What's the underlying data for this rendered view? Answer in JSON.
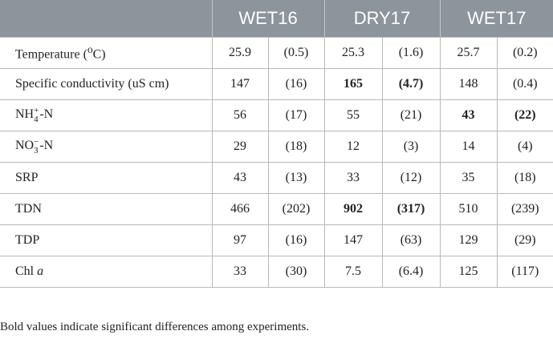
{
  "headers": [
    "",
    "WET16",
    "DRY17",
    "WET17"
  ],
  "rows": [
    {
      "label_parts": {
        "text": "Temperature (",
        "sup": "o",
        "tail": "C)"
      },
      "values": [
        "25.9",
        "(0.5)",
        "25.3",
        "(1.6)",
        "25.7",
        "(0.2)"
      ],
      "bold": [
        false,
        false,
        false,
        false,
        false,
        false
      ]
    },
    {
      "label": "Specific conductivity (uS cm)",
      "values": [
        "147",
        "(16)",
        "165",
        "(4.7)",
        "148",
        "(0.4)"
      ],
      "bold": [
        false,
        false,
        true,
        true,
        false,
        false
      ]
    },
    {
      "label_parts": {
        "base": "NH",
        "sup": "+",
        "sub": "4",
        "tail": "-N"
      },
      "values": [
        "56",
        "(17)",
        "55",
        "(21)",
        "43",
        "(22)"
      ],
      "bold": [
        false,
        false,
        false,
        false,
        true,
        true
      ]
    },
    {
      "label_parts": {
        "base": "NO",
        "sup": "−",
        "sub": "3",
        "tail": "-N"
      },
      "values": [
        "29",
        "(18)",
        "12",
        "(3)",
        "14",
        "(4)"
      ],
      "bold": [
        false,
        false,
        false,
        false,
        false,
        false
      ]
    },
    {
      "label": "SRP",
      "values": [
        "43",
        "(13)",
        "33",
        "(12)",
        "35",
        "(18)"
      ],
      "bold": [
        false,
        false,
        false,
        false,
        false,
        false
      ]
    },
    {
      "label": "TDN",
      "values": [
        "466",
        "(202)",
        "902",
        "(317)",
        "510",
        "(239)"
      ],
      "bold": [
        false,
        false,
        true,
        true,
        false,
        false
      ]
    },
    {
      "label": "TDP",
      "values": [
        "97",
        "(16)",
        "147",
        "(63)",
        "129",
        "(29)"
      ],
      "bold": [
        false,
        false,
        false,
        false,
        false,
        false
      ]
    },
    {
      "label_parts": {
        "base": "Chl ",
        "italic": "a"
      },
      "values": [
        "33",
        "(30)",
        "7.5",
        "(6.4)",
        "125",
        "(117)"
      ],
      "bold": [
        false,
        false,
        false,
        false,
        false,
        false
      ]
    }
  ],
  "footnote": "Bold values indicate significant differences among experiments."
}
